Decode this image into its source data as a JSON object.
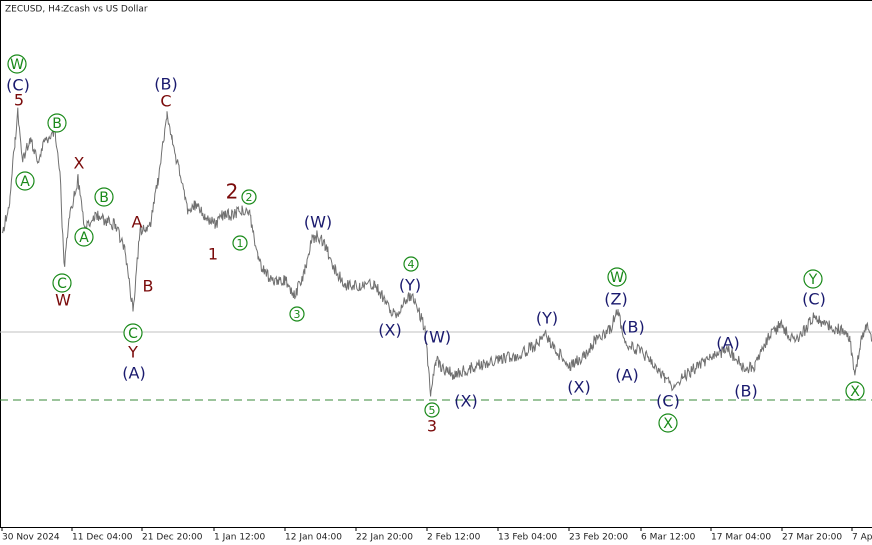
{
  "header": {
    "symbol": "ZECUSD, H4:",
    "description": "Zcash vs US Dollar"
  },
  "x_axis": {
    "labels": [
      "30 Nov 2024",
      "11 Dec 04:00",
      "21 Dec 20:00",
      "1 Jan 12:00",
      "12 Jan 04:00",
      "22 Jan 20:00",
      "2 Feb 12:00",
      "13 Feb 04:00",
      "23 Feb 20:00",
      "6 Mar 12:00",
      "17 Mar 04:00",
      "27 Mar 20:00",
      "7 Ap"
    ]
  },
  "wave_labels": {
    "circled": {
      "color": "#1a8a1a",
      "texts": [
        "W",
        "A",
        "B",
        "A",
        "B",
        "C",
        "C",
        "2",
        "1",
        "3",
        "4",
        "5",
        "W",
        "X",
        "Y",
        "X"
      ]
    },
    "navy": {
      "color": "#1a1a6e",
      "texts": [
        "(C)",
        "(B)",
        "(W)",
        "(Y)",
        "(X)",
        "(W)",
        "(X)",
        "(Y)",
        "(X)",
        "(Z)",
        "(B)",
        "(A)",
        "(C)",
        "(A)",
        "(B)",
        "(C)",
        "(A)"
      ]
    },
    "red": {
      "color": "#7a0a0a",
      "texts": [
        "5",
        "X",
        "A",
        "B",
        "W",
        "C",
        "Y",
        "2",
        "1",
        "3"
      ]
    }
  }
}
